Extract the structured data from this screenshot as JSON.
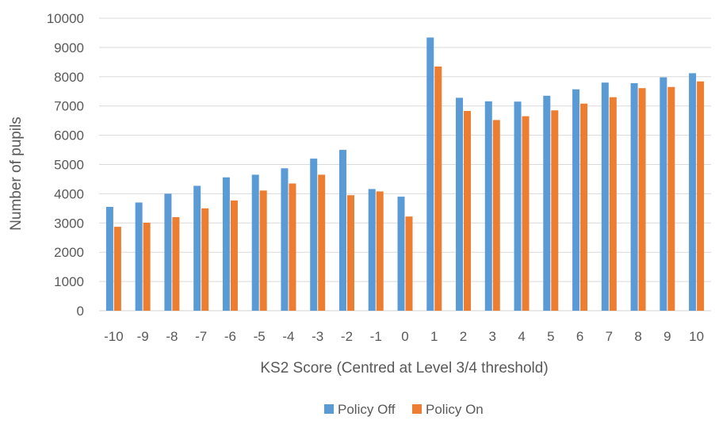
{
  "chart_data": {
    "type": "bar",
    "title": "",
    "xlabel": "KS2 Score (Centred at Level 3/4 threshold)",
    "ylabel": "Number of pupils",
    "ylim": [
      0,
      10000
    ],
    "yticks": [
      0,
      1000,
      2000,
      3000,
      4000,
      5000,
      6000,
      7000,
      8000,
      9000,
      10000
    ],
    "grid": true,
    "legend_position": "bottom",
    "categories": [
      "-10",
      "-9",
      "-8",
      "-7",
      "-6",
      "-5",
      "-4",
      "-3",
      "-2",
      "-1",
      "0",
      "1",
      "2",
      "3",
      "4",
      "5",
      "6",
      "7",
      "8",
      "9",
      "10"
    ],
    "series": [
      {
        "name": "Policy Off",
        "color": "#5b9bd5",
        "values": [
          3550,
          3700,
          4000,
          4270,
          4560,
          4650,
          4870,
          5200,
          5500,
          4160,
          3900,
          9340,
          7280,
          7160,
          7150,
          7350,
          7570,
          7800,
          7780,
          7980,
          8120
        ]
      },
      {
        "name": "Policy On",
        "color": "#ed7d31",
        "values": [
          2870,
          3010,
          3200,
          3500,
          3770,
          4110,
          4350,
          4650,
          3950,
          4080,
          3220,
          8350,
          6830,
          6520,
          6650,
          6850,
          7080,
          7300,
          7610,
          7650,
          7840
        ]
      }
    ]
  }
}
